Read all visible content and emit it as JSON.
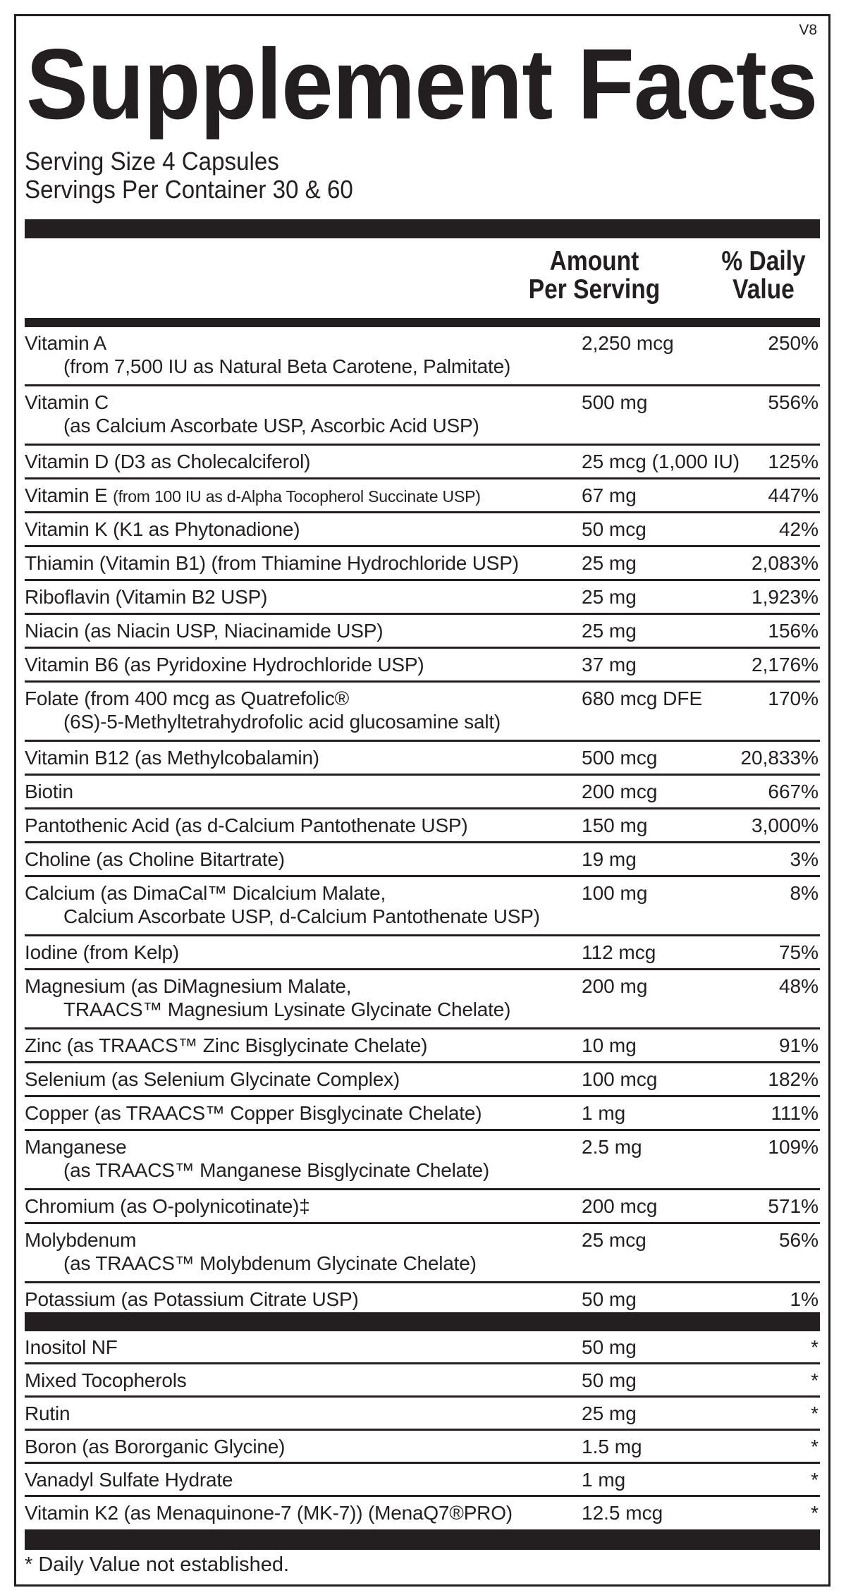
{
  "version": "V8",
  "title": "Supplement Facts",
  "serving_size": "Serving Size 4 Capsules",
  "servings_per_container": "Servings Per Container 30 & 60",
  "header": {
    "amount_line1": "Amount",
    "amount_line2": "Per Serving",
    "dv_line1": "% Daily",
    "dv_line2": "Value"
  },
  "rows": [
    {
      "name": "Vitamin A",
      "line2": "(from 7,500 IU as Natural Beta Carotene, Palmitate)",
      "amount": "2,250 mcg",
      "dv": "250%"
    },
    {
      "name": "Vitamin C",
      "line2": "(as Calcium Ascorbate USP, Ascorbic Acid USP)",
      "amount": "500 mg",
      "dv": "556%"
    },
    {
      "name": "Vitamin D (D3 as Cholecalciferol)",
      "amount": "25 mcg (1,000 IU)",
      "dv": "125%"
    },
    {
      "name": "Vitamin E",
      "note": "(from 100 IU as d-Alpha Tocopherol Succinate USP)",
      "amount": "67 mg",
      "dv": "447%"
    },
    {
      "name": "Vitamin K (K1 as Phytonadione)",
      "amount": "50 mcg",
      "dv": "42%"
    },
    {
      "name": "Thiamin (Vitamin B1) (from Thiamine Hydrochloride USP)",
      "amount": "25 mg",
      "dv": "2,083%"
    },
    {
      "name": "Riboflavin (Vitamin B2 USP)",
      "amount": "25 mg",
      "dv": "1,923%"
    },
    {
      "name": "Niacin (as Niacin USP, Niacinamide USP)",
      "amount": "25 mg",
      "dv": "156%"
    },
    {
      "name": "Vitamin B6 (as Pyridoxine Hydrochloride USP)",
      "amount": "37 mg",
      "dv": "2,176%"
    },
    {
      "name": "Folate (from 400 mcg as Quatrefolic®",
      "line2": "(6S)-5-Methyltetrahydrofolic acid glucosamine salt)",
      "amount": "680 mcg DFE",
      "dv": "170%"
    },
    {
      "name": "Vitamin B12 (as Methylcobalamin)",
      "amount": "500 mcg",
      "dv": "20,833%"
    },
    {
      "name": "Biotin",
      "amount": "200 mcg",
      "dv": "667%"
    },
    {
      "name": "Pantothenic Acid (as d-Calcium Pantothenate USP)",
      "amount": "150 mg",
      "dv": "3,000%"
    },
    {
      "name": "Choline (as Choline Bitartrate)",
      "amount": "19 mg",
      "dv": "3%"
    },
    {
      "name": "Calcium (as DimaCal™ Dicalcium Malate,",
      "line2": "Calcium Ascorbate USP, d-Calcium Pantothenate USP)",
      "amount": "100 mg",
      "dv": "8%"
    },
    {
      "name": "Iodine (from Kelp)",
      "amount": "112 mcg",
      "dv": "75%"
    },
    {
      "name": "Magnesium (as DiMagnesium Malate,",
      "line2": "TRAACS™ Magnesium Lysinate Glycinate Chelate)",
      "amount": "200 mg",
      "dv": "48%"
    },
    {
      "name": "Zinc (as TRAACS™ Zinc Bisglycinate Chelate)",
      "amount": "10 mg",
      "dv": "91%"
    },
    {
      "name": "Selenium (as Selenium Glycinate Complex)",
      "amount": "100 mcg",
      "dv": "182%"
    },
    {
      "name": "Copper (as TRAACS™ Copper Bisglycinate Chelate)",
      "amount": "1 mg",
      "dv": "111%"
    },
    {
      "name": "Manganese",
      "line2": "(as TRAACS™ Manganese Bisglycinate Chelate)",
      "amount": "2.5 mg",
      "dv": "109%"
    },
    {
      "name": "Chromium (as O-polynicotinate)‡",
      "amount": "200 mcg",
      "dv": "571%"
    },
    {
      "name": "Molybdenum",
      "line2": "(as TRAACS™ Molybdenum Glycinate Chelate)",
      "amount": "25 mcg",
      "dv": "56%"
    },
    {
      "name": "Potassium (as Potassium Citrate USP)",
      "amount": "50 mg",
      "dv": "1%"
    }
  ],
  "other_rows": [
    {
      "name": "Inositol NF",
      "amount": "50 mg",
      "dv": "*"
    },
    {
      "name": "Mixed Tocopherols",
      "amount": "50 mg",
      "dv": "*"
    },
    {
      "name": "Rutin",
      "amount": "25 mg",
      "dv": "*"
    },
    {
      "name": "Boron (as Bororganic Glycine)",
      "amount": "1.5 mg",
      "dv": "*"
    },
    {
      "name": "Vanadyl Sulfate Hydrate",
      "amount": "1 mg",
      "dv": "*"
    },
    {
      "name": "Vitamin K2 (as Menaquinone-7 (MK-7)) (MenaQ7®PRO)",
      "amount": "12.5 mcg",
      "dv": "*"
    }
  ],
  "footnote": "* Daily Value not established."
}
